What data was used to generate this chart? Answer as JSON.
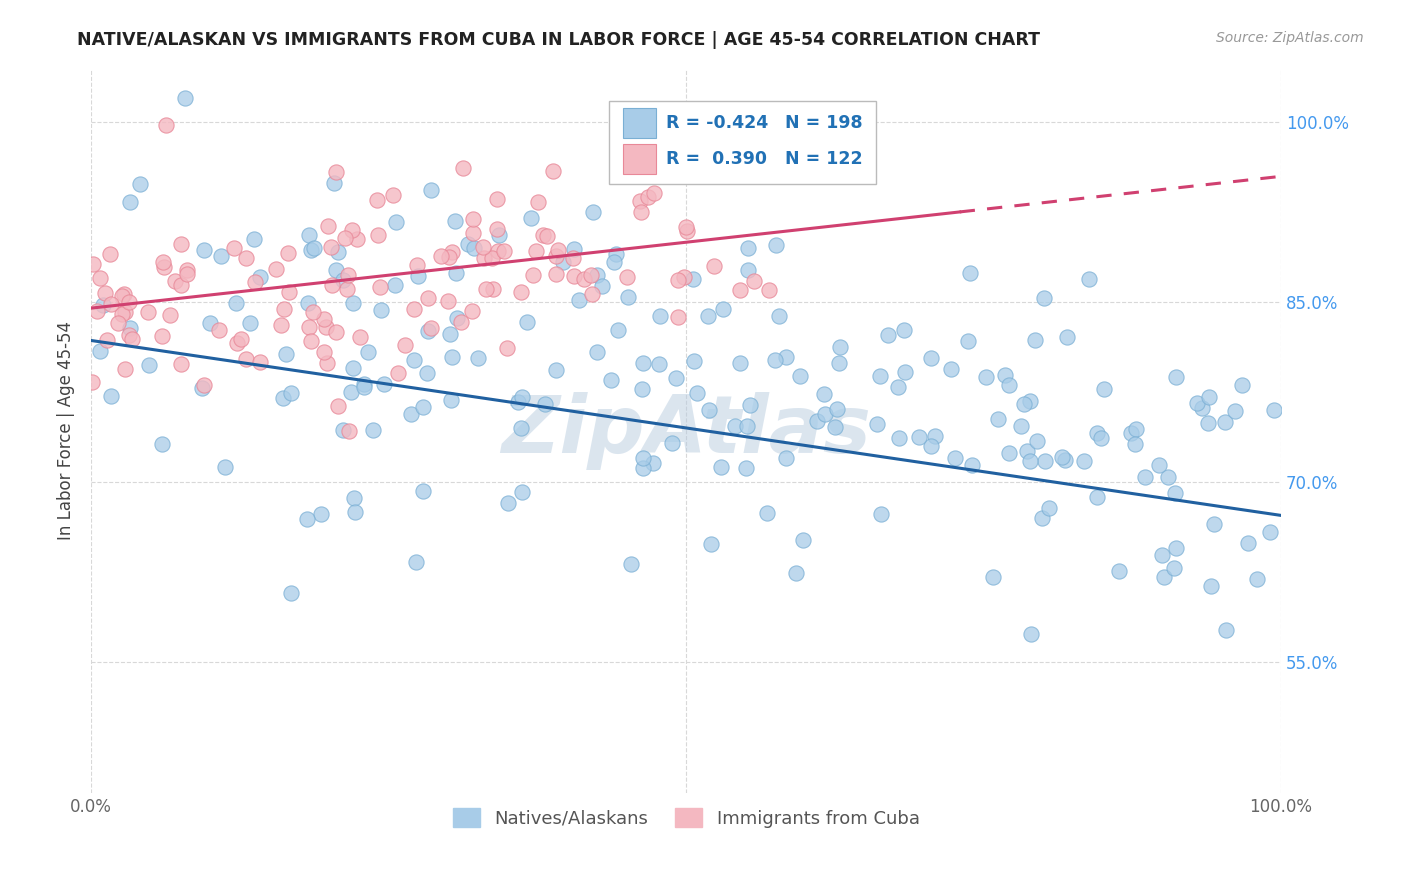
{
  "title": "NATIVE/ALASKAN VS IMMIGRANTS FROM CUBA IN LABOR FORCE | AGE 45-54 CORRELATION CHART",
  "source": "Source: ZipAtlas.com",
  "ylabel": "In Labor Force | Age 45-54",
  "xlim": [
    0.0,
    1.0
  ],
  "ylim": [
    0.44,
    1.045
  ],
  "ytick_positions": [
    0.55,
    0.7,
    0.85,
    1.0
  ],
  "ytick_labels": [
    "55.0%",
    "70.0%",
    "85.0%",
    "100.0%"
  ],
  "legend_labels": [
    "Natives/Alaskans",
    "Immigrants from Cuba"
  ],
  "blue_color": "#a8cce8",
  "pink_color": "#f4b8c1",
  "blue_edge_color": "#7aafd4",
  "pink_edge_color": "#e88898",
  "blue_line_color": "#2060a0",
  "pink_line_color": "#d04070",
  "blue_R": -0.424,
  "blue_N": 198,
  "pink_R": 0.39,
  "pink_N": 122,
  "watermark": "ZipAtlas",
  "background_color": "#ffffff",
  "grid_color": "#d8d8d8",
  "title_color": "#222222",
  "tick_color_right": "#4499ee",
  "legend_r_color": "#2171b5",
  "legend_n_color": "#2171b5"
}
